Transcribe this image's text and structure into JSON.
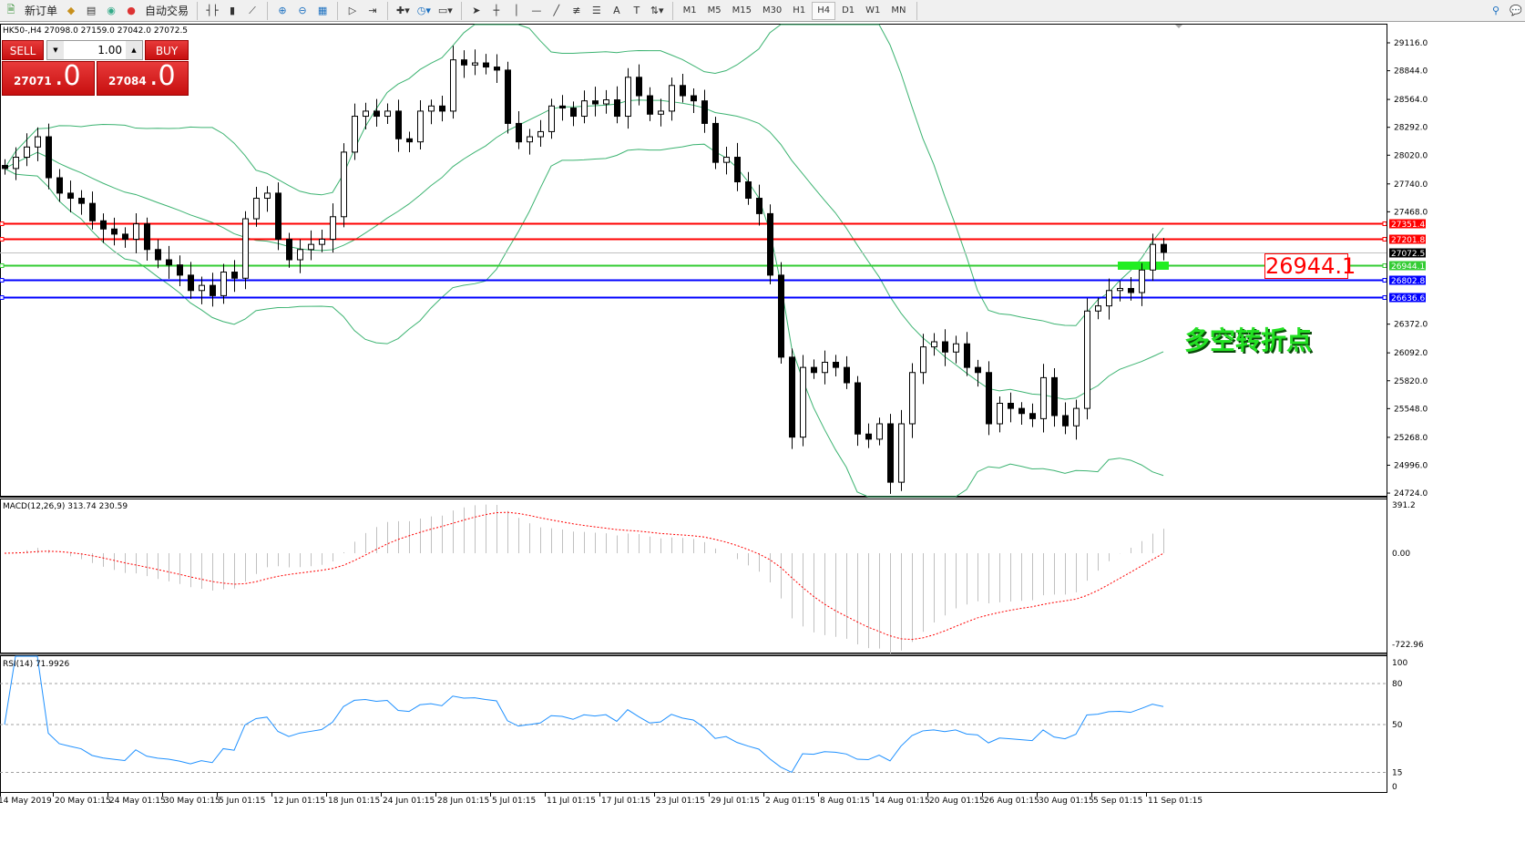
{
  "toolbar": {
    "new_order": "新订单",
    "auto_trading": "自动交易",
    "icons": [
      "new-order-icon",
      "gold-icon",
      "market-watch-icon",
      "signal-icon",
      "auto-trading-icon",
      "bar-chart-icon",
      "candlestick-icon",
      "line-chart-icon",
      "zoom-in-icon",
      "zoom-out-icon",
      "tile-windows-icon",
      "auto-scroll-icon",
      "chart-shift-icon",
      "indicators-icon",
      "periods-icon",
      "templates-icon",
      "cursor-icon",
      "crosshair-icon",
      "vertical-line-icon",
      "horizontal-line-icon",
      "trendline-icon",
      "fibonacci-icon",
      "fibo-fan-icon",
      "text-icon",
      "text-label-icon",
      "arrows-icon",
      "search-icon",
      "chat-icon"
    ],
    "timeframes": [
      "M1",
      "M5",
      "M15",
      "M30",
      "H1",
      "H4",
      "D1",
      "W1",
      "MN"
    ],
    "active_timeframe": "H4"
  },
  "symbol_line": "HK50-,H4  27098.0 27159.0 27042.0 27072.5",
  "trade_panel": {
    "sell_label": "SELL",
    "buy_label": "BUY",
    "lot": "1.00",
    "sell_price_main": "27071",
    "sell_price_big": ".0",
    "buy_price_main": "27084",
    "buy_price_big": ".0"
  },
  "annotation": {
    "text": "多空转折点",
    "label": "26944.1"
  },
  "colors": {
    "up_candle": "#ffffff",
    "down_candle": "#000000",
    "bands": "#3cb371",
    "macd_hist": "#c0c0c0",
    "macd_signal": "#ff0000",
    "rsi": "#1e90ff"
  },
  "chart_data": [
    {
      "type": "candlestick",
      "title": "HK50-,H4",
      "ohlc_last": {
        "open": 27098.0,
        "high": 27159.0,
        "low": 27042.0,
        "close": 27072.5
      },
      "ylim": [
        24724,
        29250
      ],
      "y_ticks": [
        "29116.0",
        "28844.0",
        "28564.0",
        "28292.0",
        "28020.0",
        "27740.0",
        "27468.0",
        "26372.0",
        "26092.0",
        "25820.0",
        "25548.0",
        "25268.0",
        "24996.0",
        "24724.0"
      ],
      "x_ticks": [
        "14 May 2019",
        "20 May 01:15",
        "24 May 01:15",
        "30 May 01:15",
        "5 Jun 01:15",
        "12 Jun 01:15",
        "18 Jun 01:15",
        "24 Jun 01:15",
        "28 Jun 01:15",
        "5 Jul 01:15",
        "11 Jul 01:15",
        "17 Jul 01:15",
        "23 Jul 01:15",
        "29 Jul 01:15",
        "2 Aug 01:15",
        "8 Aug 01:15",
        "14 Aug 01:15",
        "20 Aug 01:15",
        "26 Aug 01:15",
        "30 Aug 01:15",
        "5 Sep 01:15",
        "11 Sep 01:15"
      ],
      "closes": [
        27890,
        28000,
        28100,
        28200,
        27800,
        27650,
        27600,
        27550,
        27380,
        27300,
        27250,
        27200,
        27350,
        27100,
        27000,
        26950,
        26850,
        26700,
        26750,
        26650,
        26880,
        26820,
        27400,
        27600,
        27650,
        27200,
        27000,
        27100,
        27150,
        27200,
        27420,
        28050,
        28400,
        28450,
        28400,
        28450,
        28180,
        28150,
        28450,
        28500,
        28450,
        28950,
        28900,
        28920,
        28880,
        28850,
        28330,
        28150,
        28200,
        28250,
        28500,
        28480,
        28400,
        28550,
        28520,
        28560,
        28400,
        28780,
        28600,
        28420,
        28450,
        28700,
        28600,
        28550,
        28330,
        27950,
        28000,
        27760,
        27600,
        27450,
        26850,
        26050,
        25270,
        25950,
        25900,
        26000,
        25950,
        25800,
        25300,
        25250,
        25400,
        24830,
        25400,
        25900,
        26150,
        26200,
        26100,
        26180,
        25950,
        25900,
        25400,
        25600,
        25550,
        25500,
        25450,
        25850,
        25480,
        25380,
        25550,
        26500,
        26550,
        26700,
        26720,
        26680,
        26900,
        27150,
        27072.5
      ],
      "indicator": "Bollinger Bands",
      "hlines": [
        {
          "value": 27351.4,
          "label": "27351.4",
          "color": "#ff0000"
        },
        {
          "value": 27201.8,
          "label": "27201.8",
          "color": "#ff0000"
        },
        {
          "value": 26944.1,
          "label": "26944.1",
          "color": "#33cc33"
        },
        {
          "value": 26802.8,
          "label": "26802.8",
          "color": "#0000ff"
        },
        {
          "value": 26636.6,
          "label": "26636.6",
          "color": "#0000ff"
        }
      ],
      "current_price": {
        "value": 27072.5,
        "label": "27072.5"
      }
    },
    {
      "type": "bar",
      "title": "MACD(12,26,9) 313.74 230.59",
      "y_ticks": [
        "391.2",
        "0.00",
        "-722.96"
      ],
      "ylim": [
        -722.96,
        391.2
      ]
    },
    {
      "type": "line",
      "title": "RSI(14) 71.9926",
      "y_ticks": [
        "100",
        "80",
        "50",
        "15",
        "0"
      ],
      "levels": [
        80,
        50,
        15
      ],
      "ylim": [
        0,
        100
      ]
    }
  ]
}
